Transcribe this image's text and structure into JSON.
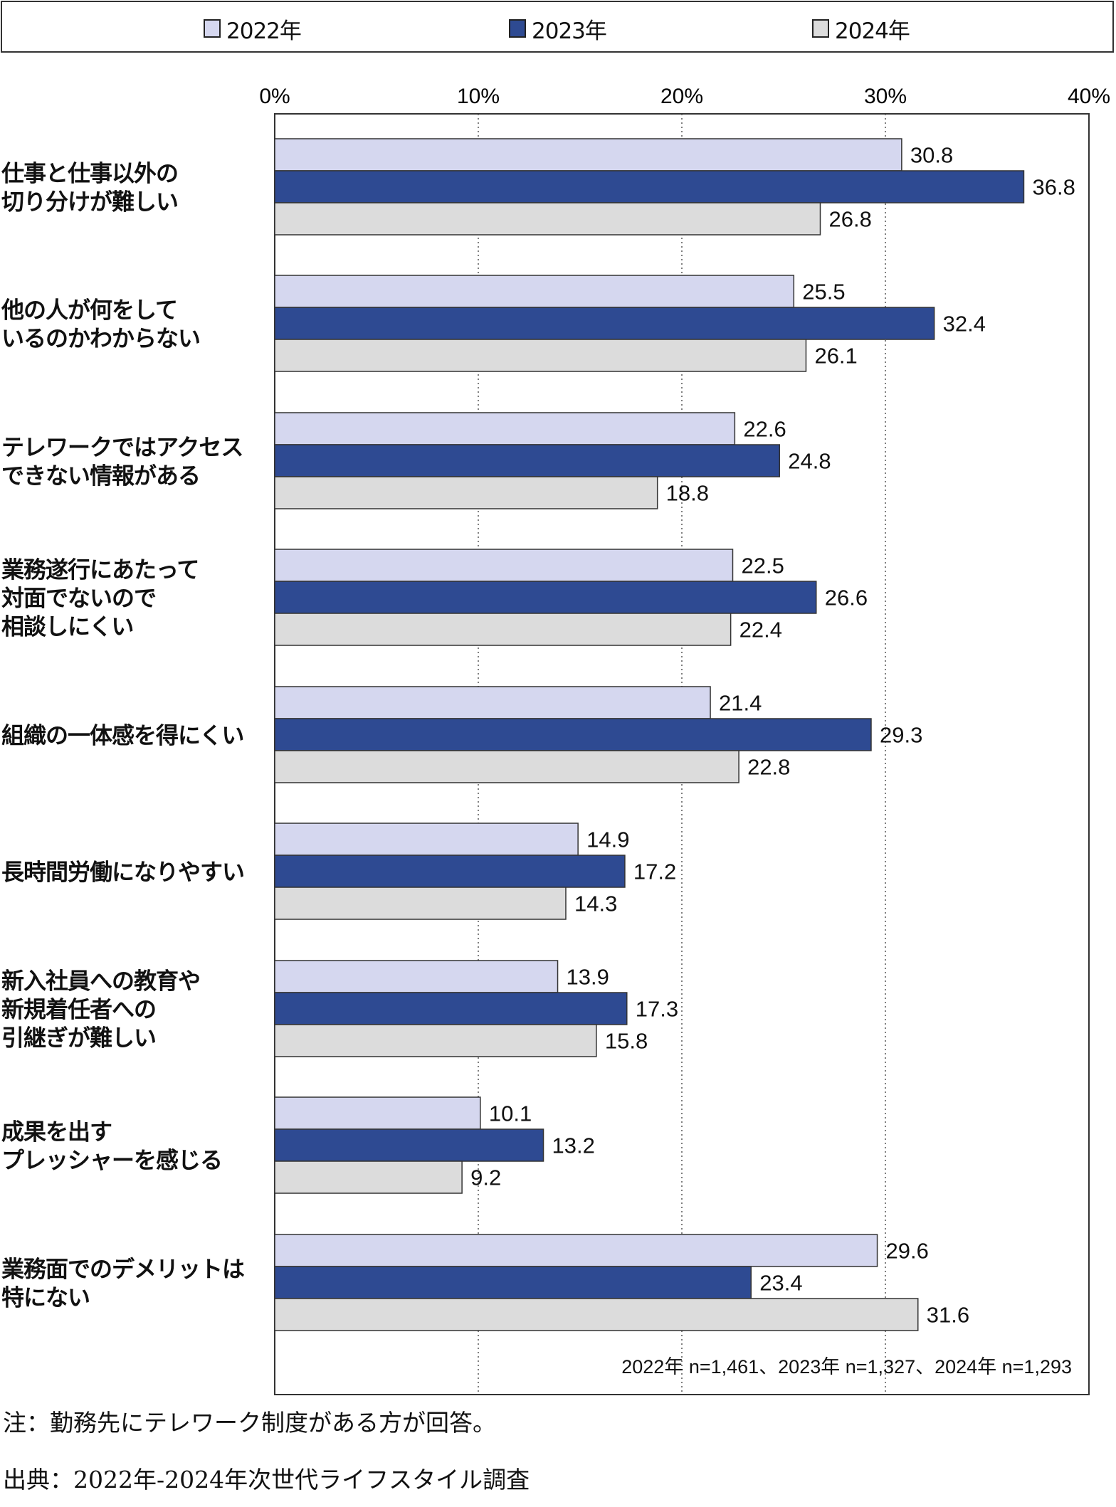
{
  "legend": [
    {
      "label": "2022年",
      "color": "#d5d7ef"
    },
    {
      "label": "2023年",
      "color": "#2e4a92"
    },
    {
      "label": "2024年",
      "color": "#dcdcdc"
    }
  ],
  "chart_data": {
    "type": "bar",
    "orientation": "horizontal",
    "categories": [
      [
        "仕事と仕事以外の",
        "切り分けが難しい"
      ],
      [
        "他の人が何をして",
        "いるのかわからない"
      ],
      [
        "テレワークではアクセス",
        "できない情報がある"
      ],
      [
        "業務遂行にあたって",
        "対面でないので",
        "相談しにくい"
      ],
      [
        "組織の一体感を得にくい"
      ],
      [
        "長時間労働になりやすい"
      ],
      [
        "新入社員への教育や",
        "新規着任者への",
        "引継ぎが難しい"
      ],
      [
        "成果を出す",
        "プレッシャーを感じる"
      ],
      [
        "業務面でのデメリットは",
        "特にない"
      ]
    ],
    "series": [
      {
        "name": "2022年",
        "color": "#d5d7ef",
        "values": [
          30.8,
          25.5,
          22.6,
          22.5,
          21.4,
          14.9,
          13.9,
          10.1,
          29.6
        ]
      },
      {
        "name": "2023年",
        "color": "#2e4a92",
        "values": [
          36.8,
          32.4,
          24.8,
          26.6,
          29.3,
          17.2,
          17.3,
          13.2,
          23.4
        ]
      },
      {
        "name": "2024年",
        "color": "#dcdcdc",
        "values": [
          26.8,
          26.1,
          18.8,
          22.4,
          22.8,
          14.3,
          15.8,
          9.2,
          31.6
        ]
      }
    ],
    "xlim": [
      0,
      40
    ],
    "xticks": [
      "0%",
      "10%",
      "20%",
      "30%",
      "40%"
    ],
    "grid": "vertical-dotted",
    "legend_position": "top",
    "sample_note": "2022年 n=1,461、2023年 n=1,327、2024年 n=1,293"
  },
  "footnotes": {
    "note": "注：勤務先にテレワーク制度がある方が回答。",
    "source": "出典：2022年-2024年次世代ライフスタイル調査"
  }
}
